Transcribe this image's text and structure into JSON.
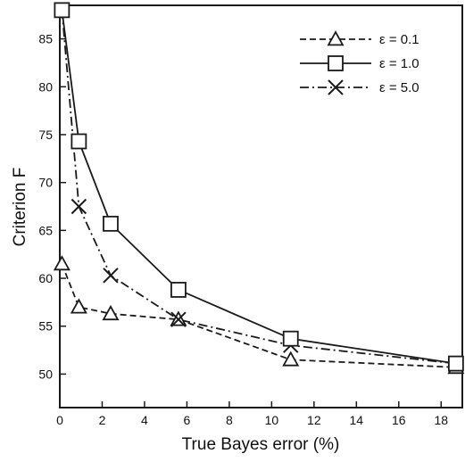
{
  "chart_data": {
    "type": "line",
    "title": "",
    "xlabel": "True Bayes error (%)",
    "ylabel": "Criterion  F",
    "xlim": [
      0,
      19
    ],
    "ylim": [
      46.5,
      88.5
    ],
    "xticks": [
      "0",
      "2",
      "4",
      "6",
      "8",
      "10",
      "12",
      "14",
      "16",
      "18"
    ],
    "yticks": [
      "50",
      "55",
      "60",
      "65",
      "70",
      "75",
      "80",
      "85"
    ],
    "grid": false,
    "legend_position": "top-right",
    "series": [
      {
        "name": "ε = 0.1",
        "line_style": "dashed",
        "marker": "triangle",
        "x": [
          0.1,
          0.9,
          2.4,
          5.6,
          10.9,
          18.7
        ],
        "y": [
          61.5,
          57.0,
          56.3,
          55.7,
          51.5,
          50.7
        ]
      },
      {
        "name": "ε = 1.0",
        "line_style": "solid",
        "marker": "square",
        "x": [
          0.1,
          0.9,
          2.4,
          5.6,
          10.9,
          18.7
        ],
        "y": [
          88.0,
          74.3,
          65.7,
          58.8,
          53.7,
          51.1
        ]
      },
      {
        "name": "ε = 5.0",
        "line_style": "dash-dot",
        "marker": "x",
        "x": [
          0.1,
          0.9,
          2.4,
          5.6,
          10.9,
          18.7
        ],
        "y": [
          88.0,
          67.5,
          60.3,
          55.7,
          53.0,
          51.1
        ]
      }
    ]
  },
  "colors": {
    "line": "#1a1a1a",
    "background": "#ffffff"
  }
}
